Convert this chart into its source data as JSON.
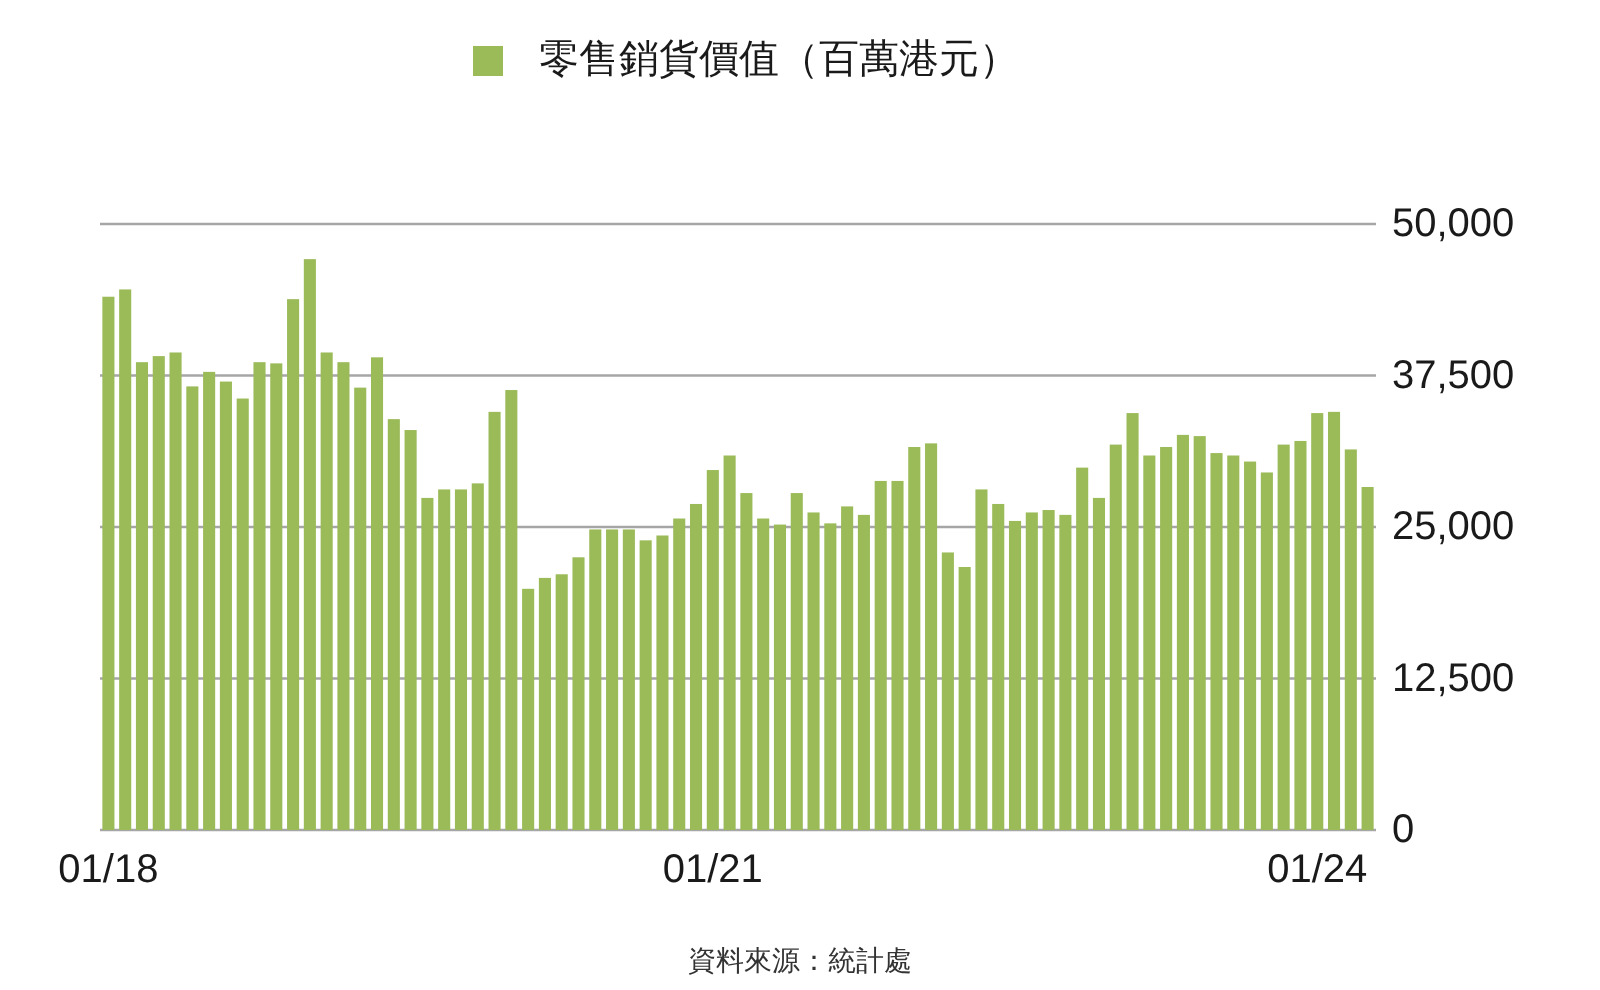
{
  "chart_data": {
    "type": "bar",
    "categories": [
      "01/18",
      null,
      null,
      null,
      null,
      null,
      null,
      null,
      null,
      null,
      null,
      null,
      null,
      null,
      null,
      null,
      null,
      null,
      null,
      null,
      null,
      null,
      null,
      null,
      null,
      null,
      null,
      null,
      null,
      null,
      null,
      null,
      null,
      null,
      null,
      null,
      "01/21",
      null,
      null,
      null,
      null,
      null,
      null,
      null,
      null,
      null,
      null,
      null,
      null,
      null,
      null,
      null,
      null,
      null,
      null,
      null,
      null,
      null,
      null,
      null,
      null,
      null,
      null,
      null,
      null,
      null,
      null,
      null,
      null,
      null,
      null,
      null,
      "01/24",
      null,
      null,
      null
    ],
    "series": [
      {
        "name": "零售銷貨價值（百萬港元）",
        "color": "#9bbb59",
        "values": [
          44000,
          44600,
          38600,
          39100,
          39400,
          36600,
          37800,
          37000,
          35600,
          38600,
          38500,
          43800,
          47100,
          39400,
          38600,
          36500,
          39000,
          33900,
          33000,
          27400,
          28100,
          28100,
          28600,
          34500,
          36300,
          19900,
          20800,
          21100,
          22500,
          24800,
          24800,
          24800,
          23900,
          24300,
          25700,
          26900,
          29700,
          30900,
          27800,
          25700,
          25200,
          27800,
          26200,
          25300,
          26700,
          26000,
          28800,
          28800,
          31600,
          31900,
          22900,
          21700,
          28100,
          26900,
          25500,
          26200,
          26400,
          26000,
          29900,
          27400,
          31800,
          34400,
          30900,
          31600,
          32600,
          32500,
          31100,
          30900,
          30400,
          29500,
          31800,
          32100,
          34400,
          34500,
          31400,
          28300
        ]
      }
    ],
    "ylim": [
      0,
      50000
    ],
    "yticks": [
      0,
      {
        "value": 12500,
        "label": "12,500"
      },
      {
        "value": 25000,
        "label": "25,000"
      },
      {
        "value": 37500,
        "label": "37,500"
      },
      {
        "value": 50000,
        "label": "50,000"
      }
    ],
    "grid": "y",
    "legend": "top",
    "annotations": [
      "資料來源：統計處"
    ]
  }
}
